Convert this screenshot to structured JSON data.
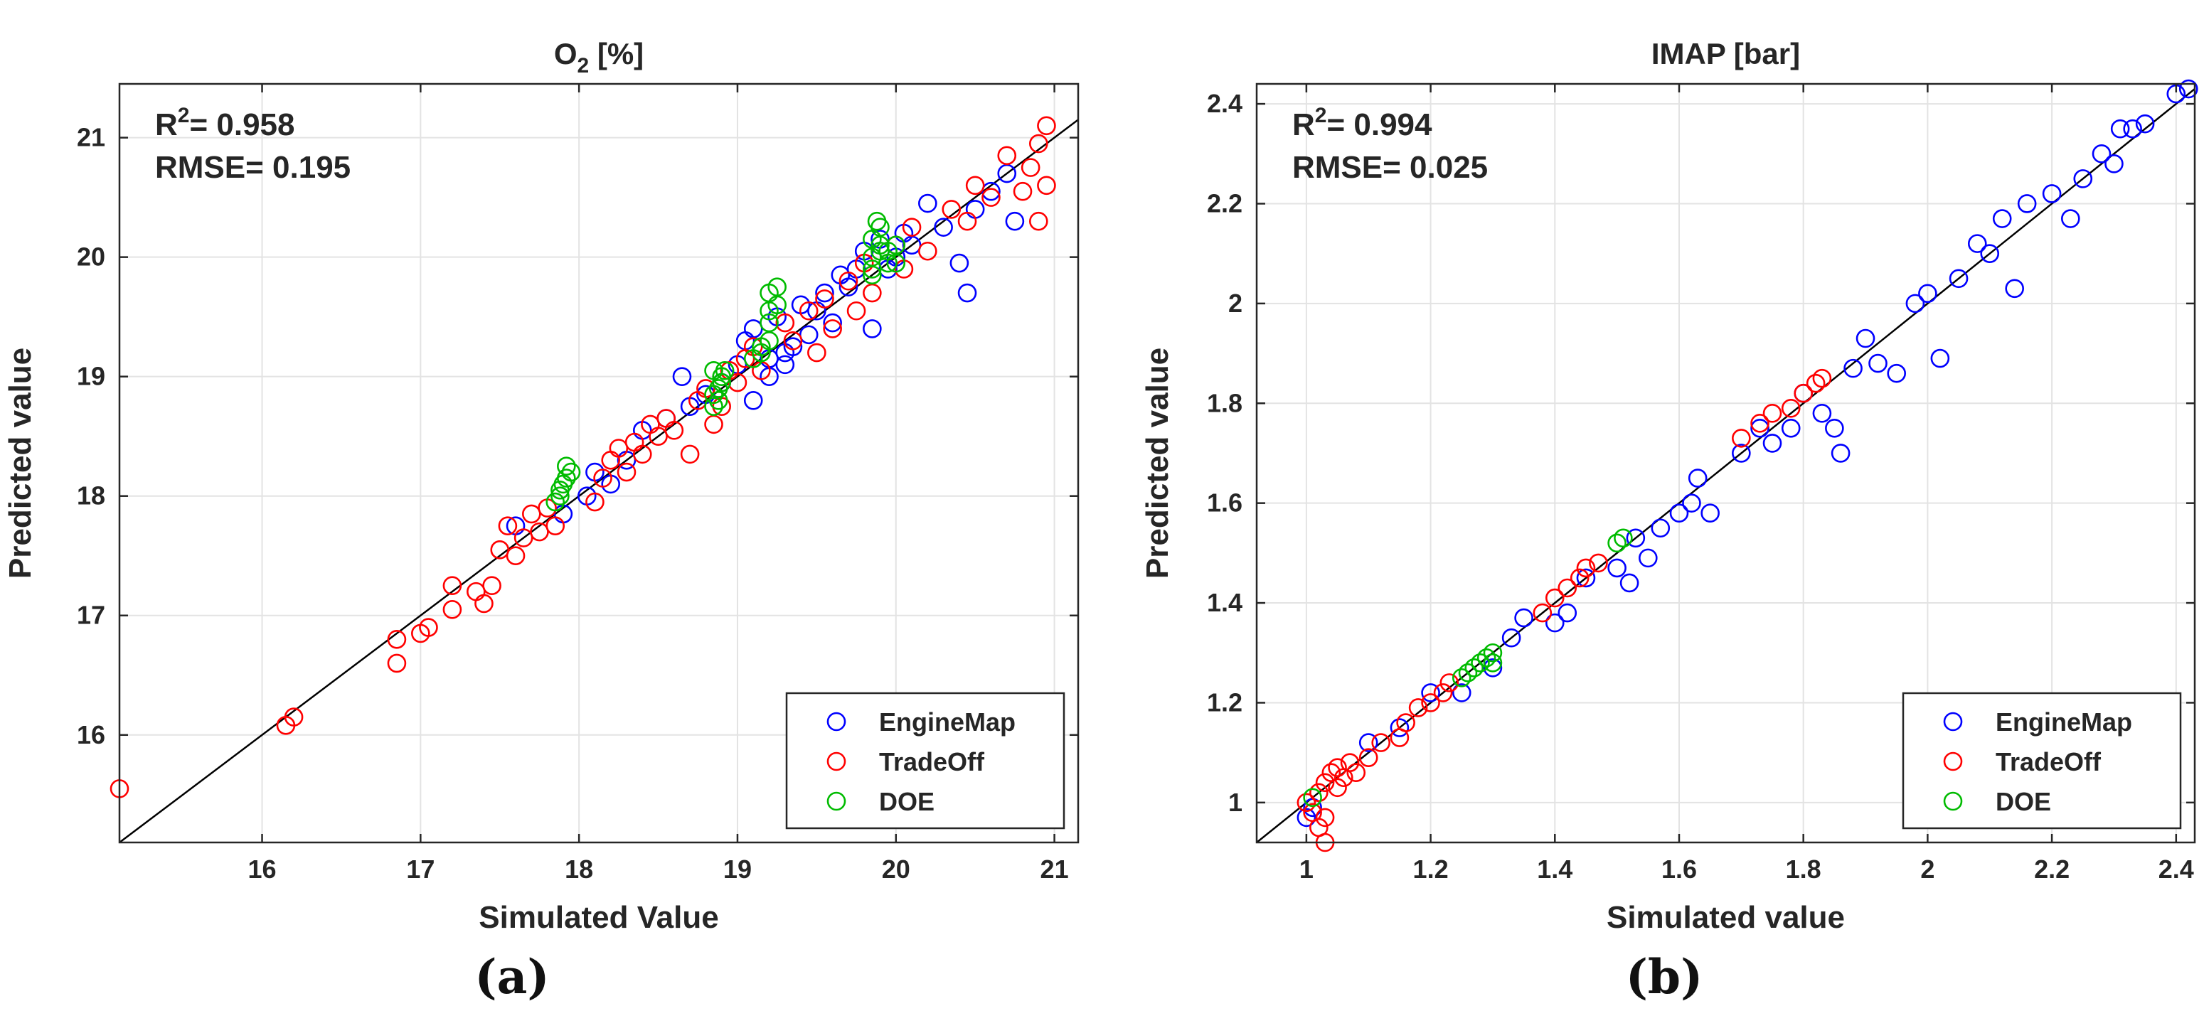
{
  "chart_data": [
    {
      "type": "scatter",
      "title": "O₂ [%]",
      "title_base": "O",
      "title_sub": "2",
      "title_rest": " [%]",
      "xlabel": "Simulated Value",
      "ylabel": "Predicted value",
      "xlim": [
        15.1,
        21.15
      ],
      "ylim": [
        15.1,
        21.45
      ],
      "xticks": [
        16,
        17,
        18,
        19,
        20,
        21
      ],
      "yticks": [
        16,
        17,
        18,
        19,
        20,
        21
      ],
      "grid": true,
      "legend_position": "bottom-right",
      "annotation_r2_label": "R",
      "annotation_r2_exp": "2",
      "annotation_r2_value": "= 0.958",
      "annotation_rmse": "RMSE= 0.195",
      "reference_line": [
        [
          15.1,
          15.1
        ],
        [
          21.15,
          21.15
        ]
      ],
      "series": [
        {
          "name": "EngineMap",
          "color": "#0000ff",
          "points": [
            [
              17.6,
              17.75
            ],
            [
              17.9,
              17.85
            ],
            [
              18.05,
              18.0
            ],
            [
              18.1,
              18.2
            ],
            [
              18.3,
              18.3
            ],
            [
              18.4,
              18.55
            ],
            [
              18.55,
              18.65
            ],
            [
              18.7,
              18.75
            ],
            [
              18.65,
              19.0
            ],
            [
              18.8,
              18.85
            ],
            [
              18.9,
              18.95
            ],
            [
              19.0,
              19.1
            ],
            [
              19.05,
              19.3
            ],
            [
              19.1,
              19.4
            ],
            [
              19.2,
              19.0
            ],
            [
              19.25,
              19.5
            ],
            [
              19.3,
              19.2
            ],
            [
              19.35,
              19.25
            ],
            [
              19.4,
              19.6
            ],
            [
              19.45,
              19.35
            ],
            [
              19.5,
              19.55
            ],
            [
              19.55,
              19.7
            ],
            [
              19.6,
              19.45
            ],
            [
              19.65,
              19.85
            ],
            [
              19.7,
              19.75
            ],
            [
              19.75,
              19.9
            ],
            [
              19.8,
              20.05
            ],
            [
              19.85,
              19.4
            ],
            [
              19.9,
              20.15
            ],
            [
              19.95,
              19.9
            ],
            [
              20.0,
              20.0
            ],
            [
              20.05,
              20.2
            ],
            [
              20.1,
              20.1
            ],
            [
              20.2,
              20.45
            ],
            [
              20.3,
              20.25
            ],
            [
              20.4,
              19.95
            ],
            [
              20.45,
              19.7
            ],
            [
              20.5,
              20.4
            ],
            [
              20.6,
              20.55
            ],
            [
              20.7,
              20.7
            ],
            [
              20.75,
              20.3
            ],
            [
              19.1,
              18.8
            ],
            [
              19.3,
              19.1
            ],
            [
              18.2,
              18.1
            ],
            [
              19.2,
              19.15
            ]
          ]
        },
        {
          "name": "TradeOff",
          "color": "#ff0000",
          "points": [
            [
              15.1,
              15.55
            ],
            [
              16.15,
              16.08
            ],
            [
              16.2,
              16.15
            ],
            [
              16.85,
              16.6
            ],
            [
              16.85,
              16.8
            ],
            [
              17.0,
              16.85
            ],
            [
              17.05,
              16.9
            ],
            [
              17.2,
              17.05
            ],
            [
              17.2,
              17.25
            ],
            [
              17.35,
              17.2
            ],
            [
              17.4,
              17.1
            ],
            [
              17.45,
              17.25
            ],
            [
              17.5,
              17.55
            ],
            [
              17.6,
              17.5
            ],
            [
              17.55,
              17.75
            ],
            [
              17.65,
              17.65
            ],
            [
              17.7,
              17.85
            ],
            [
              17.75,
              17.7
            ],
            [
              17.8,
              17.9
            ],
            [
              17.85,
              17.75
            ],
            [
              18.1,
              17.95
            ],
            [
              18.15,
              18.15
            ],
            [
              18.2,
              18.3
            ],
            [
              18.25,
              18.4
            ],
            [
              18.3,
              18.2
            ],
            [
              18.35,
              18.45
            ],
            [
              18.4,
              18.35
            ],
            [
              18.45,
              18.6
            ],
            [
              18.5,
              18.5
            ],
            [
              18.55,
              18.65
            ],
            [
              18.6,
              18.55
            ],
            [
              18.7,
              18.35
            ],
            [
              18.75,
              18.8
            ],
            [
              18.8,
              18.9
            ],
            [
              18.85,
              18.6
            ],
            [
              18.9,
              18.75
            ],
            [
              18.95,
              19.05
            ],
            [
              19.0,
              18.95
            ],
            [
              19.05,
              19.15
            ],
            [
              19.1,
              19.25
            ],
            [
              19.15,
              19.05
            ],
            [
              19.3,
              19.45
            ],
            [
              19.35,
              19.3
            ],
            [
              19.45,
              19.55
            ],
            [
              19.5,
              19.2
            ],
            [
              19.55,
              19.65
            ],
            [
              19.6,
              19.4
            ],
            [
              19.7,
              19.8
            ],
            [
              19.75,
              19.55
            ],
            [
              19.8,
              19.95
            ],
            [
              19.85,
              19.7
            ],
            [
              20.0,
              20.1
            ],
            [
              20.05,
              19.9
            ],
            [
              20.1,
              20.25
            ],
            [
              20.2,
              20.05
            ],
            [
              20.35,
              20.4
            ],
            [
              20.45,
              20.3
            ],
            [
              20.5,
              20.6
            ],
            [
              20.6,
              20.5
            ],
            [
              20.7,
              20.85
            ],
            [
              20.8,
              20.55
            ],
            [
              20.85,
              20.75
            ],
            [
              20.9,
              20.95
            ],
            [
              20.95,
              21.1
            ],
            [
              20.9,
              20.3
            ],
            [
              20.95,
              20.6
            ]
          ]
        },
        {
          "name": "DOE",
          "color": "#00bb00",
          "points": [
            [
              17.85,
              17.95
            ],
            [
              17.88,
              18.05
            ],
            [
              17.9,
              18.1
            ],
            [
              17.92,
              18.15
            ],
            [
              17.95,
              18.2
            ],
            [
              17.88,
              18.0
            ],
            [
              17.92,
              18.25
            ],
            [
              18.85,
              18.75
            ],
            [
              18.85,
              18.85
            ],
            [
              18.88,
              18.9
            ],
            [
              18.9,
              18.95
            ],
            [
              18.9,
              19.0
            ],
            [
              18.85,
              19.05
            ],
            [
              18.92,
              19.05
            ],
            [
              18.88,
              18.8
            ],
            [
              19.1,
              19.15
            ],
            [
              19.15,
              19.2
            ],
            [
              19.15,
              19.25
            ],
            [
              19.2,
              19.3
            ],
            [
              19.2,
              19.45
            ],
            [
              19.2,
              19.55
            ],
            [
              19.25,
              19.6
            ],
            [
              19.2,
              19.7
            ],
            [
              19.25,
              19.75
            ],
            [
              19.85,
              19.9
            ],
            [
              19.85,
              20.0
            ],
            [
              19.9,
              20.05
            ],
            [
              19.9,
              20.1
            ],
            [
              19.85,
              20.15
            ],
            [
              19.9,
              20.25
            ],
            [
              19.95,
              19.95
            ],
            [
              19.95,
              20.05
            ],
            [
              20.0,
              20.1
            ],
            [
              19.88,
              20.3
            ],
            [
              19.85,
              19.85
            ],
            [
              20.0,
              19.95
            ]
          ]
        }
      ]
    },
    {
      "type": "scatter",
      "title": "IMAP [bar]",
      "xlabel": "Simulated value",
      "ylabel": "Predicted value",
      "xlim": [
        0.92,
        2.43
      ],
      "ylim": [
        0.92,
        2.44
      ],
      "xticks": [
        1,
        1.2,
        1.4,
        1.6,
        1.8,
        2,
        2.2,
        2.4
      ],
      "yticks": [
        1,
        1.2,
        1.4,
        1.6,
        1.8,
        2,
        2.2,
        2.4
      ],
      "grid": true,
      "legend_position": "bottom-right",
      "annotation_r2_label": "R",
      "annotation_r2_exp": "2",
      "annotation_r2_value": "= 0.994",
      "annotation_rmse": "RMSE= 0.025",
      "reference_line": [
        [
          0.92,
          0.92
        ],
        [
          2.43,
          2.43
        ]
      ],
      "series": [
        {
          "name": "EngineMap",
          "color": "#0000ff",
          "points": [
            [
              1.0,
              0.97
            ],
            [
              1.01,
              0.99
            ],
            [
              1.1,
              1.12
            ],
            [
              1.15,
              1.15
            ],
            [
              1.2,
              1.22
            ],
            [
              1.25,
              1.22
            ],
            [
              1.3,
              1.27
            ],
            [
              1.33,
              1.33
            ],
            [
              1.35,
              1.37
            ],
            [
              1.4,
              1.36
            ],
            [
              1.42,
              1.38
            ],
            [
              1.45,
              1.45
            ],
            [
              1.5,
              1.47
            ],
            [
              1.52,
              1.44
            ],
            [
              1.53,
              1.53
            ],
            [
              1.55,
              1.49
            ],
            [
              1.57,
              1.55
            ],
            [
              1.6,
              1.58
            ],
            [
              1.62,
              1.6
            ],
            [
              1.63,
              1.65
            ],
            [
              1.65,
              1.58
            ],
            [
              1.7,
              1.7
            ],
            [
              1.73,
              1.75
            ],
            [
              1.75,
              1.72
            ],
            [
              1.78,
              1.75
            ],
            [
              1.8,
              1.82
            ],
            [
              1.83,
              1.78
            ],
            [
              1.85,
              1.75
            ],
            [
              1.86,
              1.7
            ],
            [
              1.88,
              1.87
            ],
            [
              1.9,
              1.93
            ],
            [
              1.92,
              1.88
            ],
            [
              1.95,
              1.86
            ],
            [
              1.98,
              2.0
            ],
            [
              2.0,
              2.02
            ],
            [
              2.02,
              1.89
            ],
            [
              2.05,
              2.05
            ],
            [
              2.08,
              2.12
            ],
            [
              2.1,
              2.1
            ],
            [
              2.12,
              2.17
            ],
            [
              2.14,
              2.03
            ],
            [
              2.16,
              2.2
            ],
            [
              2.2,
              2.22
            ],
            [
              2.23,
              2.17
            ],
            [
              2.25,
              2.25
            ],
            [
              2.28,
              2.3
            ],
            [
              2.3,
              2.28
            ],
            [
              2.31,
              2.35
            ],
            [
              2.33,
              2.35
            ],
            [
              2.35,
              2.36
            ],
            [
              2.4,
              2.42
            ],
            [
              2.42,
              2.43
            ]
          ]
        },
        {
          "name": "TradeOff",
          "color": "#ff0000",
          "points": [
            [
              1.0,
              1.0
            ],
            [
              1.01,
              0.98
            ],
            [
              1.02,
              1.02
            ],
            [
              1.02,
              0.95
            ],
            [
              1.03,
              0.92
            ],
            [
              1.03,
              0.97
            ],
            [
              1.03,
              1.04
            ],
            [
              1.04,
              1.06
            ],
            [
              1.05,
              1.03
            ],
            [
              1.05,
              1.07
            ],
            [
              1.06,
              1.05
            ],
            [
              1.07,
              1.08
            ],
            [
              1.08,
              1.06
            ],
            [
              1.1,
              1.09
            ],
            [
              1.12,
              1.12
            ],
            [
              1.15,
              1.13
            ],
            [
              1.16,
              1.16
            ],
            [
              1.18,
              1.19
            ],
            [
              1.2,
              1.2
            ],
            [
              1.22,
              1.22
            ],
            [
              1.23,
              1.24
            ],
            [
              1.38,
              1.38
            ],
            [
              1.4,
              1.41
            ],
            [
              1.42,
              1.43
            ],
            [
              1.44,
              1.45
            ],
            [
              1.45,
              1.47
            ],
            [
              1.47,
              1.48
            ],
            [
              1.7,
              1.73
            ],
            [
              1.73,
              1.76
            ],
            [
              1.75,
              1.78
            ],
            [
              1.78,
              1.79
            ],
            [
              1.8,
              1.82
            ],
            [
              1.82,
              1.84
            ],
            [
              1.83,
              1.85
            ]
          ]
        },
        {
          "name": "DOE",
          "color": "#00bb00",
          "points": [
            [
              1.01,
              1.01
            ],
            [
              1.25,
              1.25
            ],
            [
              1.26,
              1.26
            ],
            [
              1.27,
              1.27
            ],
            [
              1.28,
              1.28
            ],
            [
              1.29,
              1.29
            ],
            [
              1.3,
              1.3
            ],
            [
              1.3,
              1.28
            ],
            [
              1.5,
              1.52
            ],
            [
              1.51,
              1.53
            ]
          ]
        }
      ]
    }
  ],
  "panel_labels": [
    "(a)",
    "(b)"
  ]
}
